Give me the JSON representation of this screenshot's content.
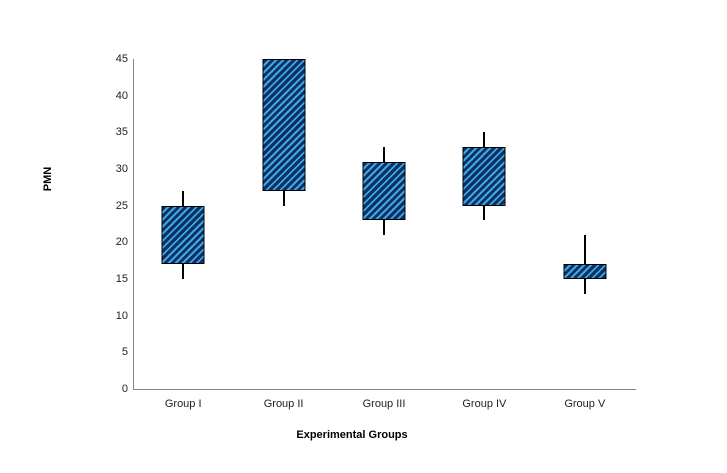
{
  "chart_data": {
    "type": "box",
    "title": "",
    "xlabel": "Experimental Groups",
    "ylabel": "PMN",
    "categories": [
      "Group I",
      "Group II",
      "Group III",
      "Group IV",
      "Group V"
    ],
    "ylim": [
      0,
      45
    ],
    "y_ticks": [
      0,
      5,
      10,
      15,
      20,
      25,
      30,
      35,
      40,
      45
    ],
    "grid": false,
    "legend": "none",
    "boxes": [
      {
        "group": "Group I",
        "low": 15,
        "box_bottom": 17,
        "box_top": 25,
        "high": 27
      },
      {
        "group": "Group II",
        "low": 25,
        "box_bottom": 27,
        "box_top": 45,
        "high": 45
      },
      {
        "group": "Group III",
        "low": 21,
        "box_bottom": 23,
        "box_top": 31,
        "high": 33
      },
      {
        "group": "Group IV",
        "low": 23,
        "box_bottom": 25,
        "box_top": 33,
        "high": 35
      },
      {
        "group": "Group V",
        "low": 13,
        "box_bottom": 15,
        "box_top": 17,
        "high": 21
      }
    ],
    "colors": {
      "box_fill_dark": "#0b3067",
      "box_stripe_light": "#3fa7dc",
      "box_border": "#000000",
      "whisker": "#000000",
      "axis_line": "#858585",
      "tick_text": "#1f1f1f",
      "background": "#ffffff",
      "pattern": "upward-diagonal-stripes"
    }
  }
}
